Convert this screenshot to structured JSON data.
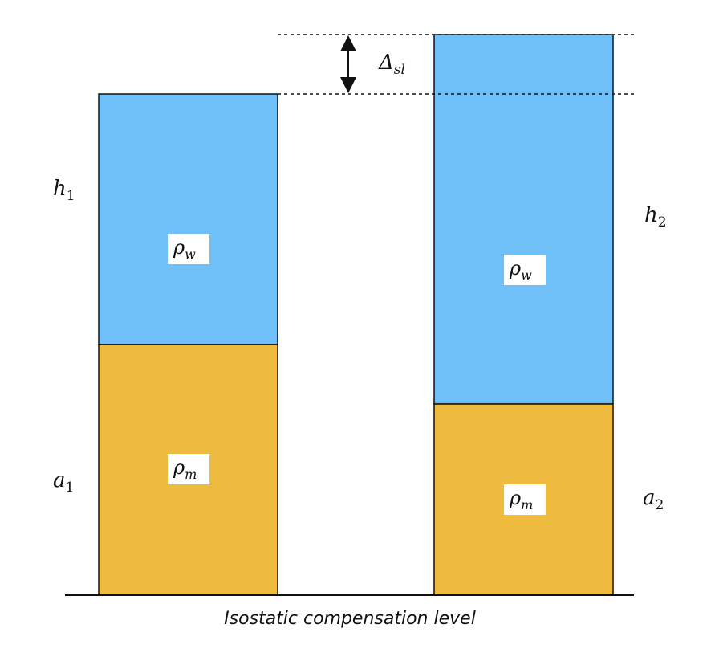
{
  "colors": {
    "water": "#6fbff8",
    "mantle": "#eebb3f",
    "outline": "#111111",
    "background": "#ffffff"
  },
  "columns": {
    "left": {
      "upper_label_base": "ρ",
      "upper_label_sub": "w",
      "lower_label_base": "ρ",
      "lower_label_sub": "m",
      "height_label_base": "h",
      "height_label_sub": "1",
      "depth_label_base": "a",
      "depth_label_sub": "1"
    },
    "right": {
      "upper_label_base": "ρ",
      "upper_label_sub": "w",
      "lower_label_base": "ρ",
      "lower_label_sub": "m",
      "height_label_base": "h",
      "height_label_sub": "2",
      "depth_label_base": "a",
      "depth_label_sub": "2"
    }
  },
  "sea_level_difference": {
    "base": "Δ",
    "sub": "sl"
  },
  "baseline_caption": "Isostatic compensation level"
}
